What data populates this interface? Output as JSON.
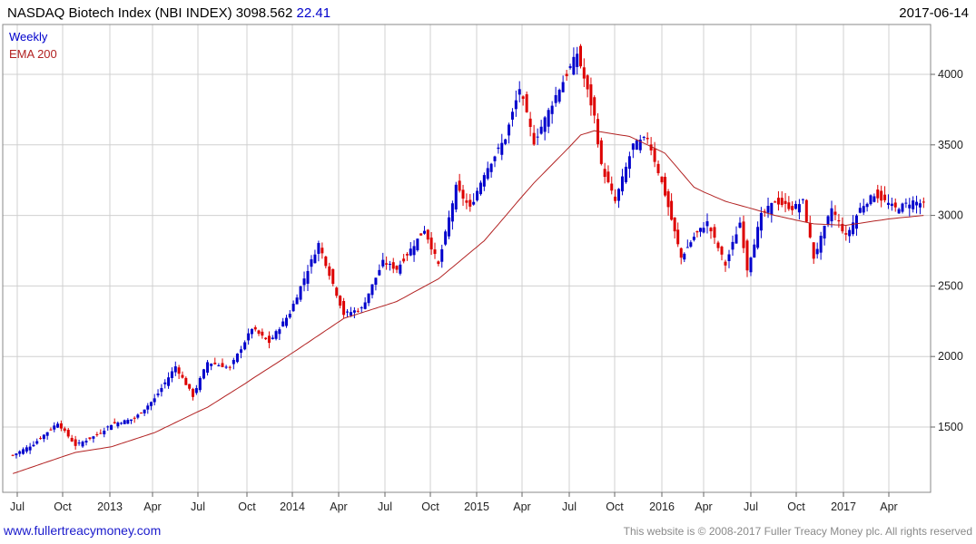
{
  "header": {
    "title": "NASDAQ Biotech Index (NBI INDEX)",
    "last": "3098.562",
    "change": "22.41",
    "date": "2017-06-14"
  },
  "legend": {
    "frequency": "Weekly",
    "ma": "EMA 200"
  },
  "footer": {
    "url": "www.fullertreacymoney.com",
    "copyright": "This website is © 2008-2017 Fuller Treacy Money plc. All rights reserved"
  },
  "colors": {
    "up": "#0000cc",
    "down": "#dd0000",
    "ema": "#b22222",
    "grid": "#d0d0d0"
  },
  "chart_data": {
    "type": "candlestick",
    "frequency": "weekly",
    "x_ticks": [
      "Jul",
      "Oct",
      "2013",
      "Apr",
      "Jul",
      "Oct",
      "2014",
      "Apr",
      "Jul",
      "Oct",
      "2015",
      "Apr",
      "Jul",
      "Oct",
      "2016",
      "Apr",
      "Jul",
      "Oct",
      "2017",
      "Apr"
    ],
    "y_ticks": [
      1500,
      2000,
      2500,
      3000,
      3500,
      4000
    ],
    "ylim": [
      1120,
      4230
    ],
    "y_axis_side": "right",
    "grid": true,
    "series": [
      {
        "name": "Weekly",
        "anchors": [
          [
            "2012-06-22",
            1300
          ],
          [
            "2012-08-03",
            1380
          ],
          [
            "2012-09-21",
            1530
          ],
          [
            "2012-10-26",
            1370
          ],
          [
            "2012-12-07",
            1445
          ],
          [
            "2013-01-04",
            1520
          ],
          [
            "2013-02-22",
            1560
          ],
          [
            "2013-04-05",
            1700
          ],
          [
            "2013-05-17",
            1930
          ],
          [
            "2013-06-21",
            1720
          ],
          [
            "2013-07-19",
            1960
          ],
          [
            "2013-08-30",
            1920
          ],
          [
            "2013-10-11",
            2200
          ],
          [
            "2013-11-15",
            2100
          ],
          [
            "2013-12-27",
            2310
          ],
          [
            "2014-02-21",
            2800
          ],
          [
            "2014-04-11",
            2300
          ],
          [
            "2014-05-16",
            2340
          ],
          [
            "2014-06-27",
            2670
          ],
          [
            "2014-07-25",
            2620
          ],
          [
            "2014-09-19",
            2900
          ],
          [
            "2014-10-17",
            2650
          ],
          [
            "2014-11-21",
            3200
          ],
          [
            "2014-12-19",
            3050
          ],
          [
            "2015-01-16",
            3300
          ],
          [
            "2015-02-27",
            3550
          ],
          [
            "2015-03-27",
            3900
          ],
          [
            "2015-04-24",
            3520
          ],
          [
            "2015-06-05",
            3850
          ],
          [
            "2015-07-17",
            4150
          ],
          [
            "2015-08-21",
            3700
          ],
          [
            "2015-09-04",
            3350
          ],
          [
            "2015-10-02",
            3100
          ],
          [
            "2015-11-06",
            3500
          ],
          [
            "2015-12-04",
            3550
          ],
          [
            "2016-01-08",
            3150
          ],
          [
            "2016-02-12",
            2700
          ],
          [
            "2016-03-11",
            2850
          ],
          [
            "2016-04-08",
            2950
          ],
          [
            "2016-05-13",
            2650
          ],
          [
            "2016-06-10",
            2950
          ],
          [
            "2016-06-24",
            2620
          ],
          [
            "2016-07-22",
            3000
          ],
          [
            "2016-08-19",
            3100
          ],
          [
            "2016-09-23",
            3050
          ],
          [
            "2016-10-14",
            3100
          ],
          [
            "2016-11-04",
            2700
          ],
          [
            "2016-12-09",
            3050
          ],
          [
            "2017-01-06",
            2850
          ],
          [
            "2017-02-03",
            3050
          ],
          [
            "2017-03-03",
            3150
          ],
          [
            "2017-04-14",
            3050
          ],
          [
            "2017-05-19",
            3100
          ],
          [
            "2017-06-09",
            3080
          ]
        ]
      },
      {
        "name": "EMA 200",
        "anchors": [
          [
            "2012-06-22",
            1170
          ],
          [
            "2012-10-26",
            1320
          ],
          [
            "2013-01-04",
            1360
          ],
          [
            "2013-04-05",
            1460
          ],
          [
            "2013-07-19",
            1640
          ],
          [
            "2013-10-11",
            1840
          ],
          [
            "2014-01-03",
            2030
          ],
          [
            "2014-04-11",
            2270
          ],
          [
            "2014-07-25",
            2390
          ],
          [
            "2014-10-17",
            2550
          ],
          [
            "2015-01-16",
            2820
          ],
          [
            "2015-04-24",
            3230
          ],
          [
            "2015-07-24",
            3570
          ],
          [
            "2015-08-21",
            3600
          ],
          [
            "2015-10-30",
            3560
          ],
          [
            "2016-01-08",
            3440
          ],
          [
            "2016-03-11",
            3200
          ],
          [
            "2016-05-13",
            3100
          ],
          [
            "2016-08-19",
            3000
          ],
          [
            "2016-11-04",
            2940
          ],
          [
            "2017-01-06",
            2930
          ],
          [
            "2017-03-31",
            2975
          ],
          [
            "2017-06-09",
            3000
          ]
        ]
      }
    ]
  }
}
